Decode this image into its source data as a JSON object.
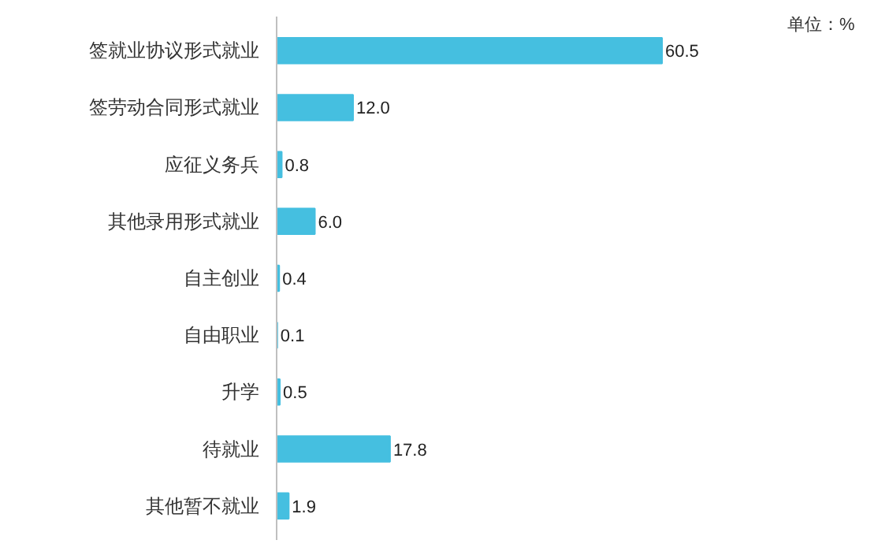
{
  "chart_data": {
    "type": "bar",
    "orientation": "horizontal",
    "categories": [
      "签就业协议形式就业",
      "签劳动合同形式就业",
      "应征义务兵",
      "其他录用形式就业",
      "自主创业",
      "自由职业",
      "升学",
      "待就业",
      "其他暂不就业"
    ],
    "values": [
      60.5,
      12.0,
      0.8,
      6.0,
      0.4,
      0.1,
      0.5,
      17.8,
      1.9
    ],
    "value_labels": [
      "60.5",
      "12.0",
      "0.8",
      "6.0",
      "0.4",
      "0.1",
      "0.5",
      "17.8",
      "1.9"
    ],
    "color": "#45bfe0",
    "annotations": [
      "单位：%"
    ],
    "grid": false
  }
}
